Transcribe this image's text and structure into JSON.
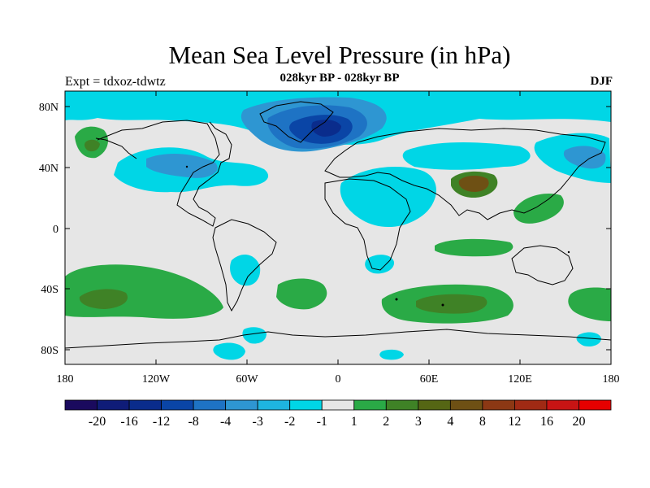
{
  "title": "Mean Sea Level Pressure (in hPa)",
  "subtitle": "028kyr BP - 028kyr BP",
  "experiment": "Expt = tdxoz-tdwtz",
  "season": "DJF",
  "colors": {
    "ocean_land_background": "#e6e6e6",
    "coastline": "#000000"
  },
  "axes": {
    "y_ticks": [
      "80N",
      "40N",
      "0",
      "40S",
      "80S"
    ],
    "x_ticks": [
      "180",
      "120W",
      "60W",
      "0",
      "60E",
      "120E",
      "180"
    ]
  },
  "colorbar": {
    "colors": [
      "#1a0a5e",
      "#0f1c78",
      "#0a2c8c",
      "#0a45a6",
      "#1e73c4",
      "#2e96d2",
      "#1eb4e0",
      "#00d6e6",
      "#e6e6e6",
      "#2aaa46",
      "#3f8226",
      "#556614",
      "#6e5014",
      "#8c3814",
      "#a02a14",
      "#c81414",
      "#e60000"
    ],
    "labels": [
      "-20",
      "-16",
      "-12",
      "-8",
      "-4",
      "-3",
      "-2",
      "-1",
      "1",
      "2",
      "3",
      "4",
      "8",
      "12",
      "16",
      "20"
    ]
  }
}
